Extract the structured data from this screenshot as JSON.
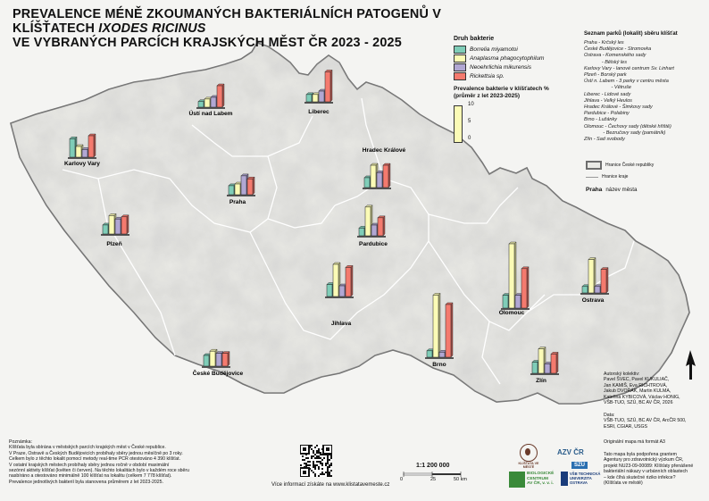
{
  "title": {
    "line1_prefix": "PREVALENCE MÉNĚ ZKOUMANÝCH BAKTERIÁLNÍCH PATOGENŮ V KLÍŠŤATECH ",
    "line1_species": "IXODES RICINUS",
    "line2": "VE VYBRANÝCH PARCÍCH KRAJSKÝCH MĚST ČR 2023 - 2025"
  },
  "colors": {
    "borrelia": "#7fcdb8",
    "anaplasma": "#fbfbb6",
    "neoehrlichia": "#b1a7d3",
    "rickettsia": "#f47a6e",
    "border": "#777777",
    "map_fill": "#eaeae6"
  },
  "legend": {
    "title": "Druh bakterie",
    "items": [
      {
        "key": "borrelia",
        "label": "Borrelia miyamotoi"
      },
      {
        "key": "anaplasma",
        "label": "Anaplasma phagocytophilum"
      },
      {
        "key": "neoehrlichia",
        "label": "Neoehrlichia mikurensis"
      },
      {
        "key": "rickettsia",
        "label": "Rickettsia sp."
      }
    ],
    "scale_title_line1": "Prevalence bakterie v klíšťatech %",
    "scale_title_line2": "(průměr z let 2023-2025)",
    "scale_ticks": [
      "10",
      "5",
      "0"
    ]
  },
  "parks": {
    "title": "Seznam parků (lokalit) sběru klíšťat",
    "items": [
      "Praha - Krčský les",
      "České Budějovice - Stromovka",
      "Ostrava - Komenského sady",
      "             - Bělský les",
      "Karlovy Vary - lanové centrum Sv. Linhart",
      "Plzeň - Borský park",
      "Ústí n. Labem - 3 parky v centru města",
      "                    - Větruše",
      "Liberec - Lidové sady",
      "Jihlava - Velký Heulos",
      "Hradec Králové - Šimkovy sady",
      "Pardubice - Polabiny",
      "Brno - Lužánky",
      "Olomouc - Čechovy sady (dětské hřiště)",
      "              - Bezručovy sady (památník)",
      "Zlín - Sad svobody"
    ]
  },
  "map_legend": {
    "border_label": "Hranice České republiky",
    "region_label": "Hranice kraje",
    "city_sample": "Praha",
    "city_label": "název města"
  },
  "chart_data": {
    "type": "bar",
    "title": "",
    "series_keys": [
      "borrelia",
      "anaplasma",
      "neoehrlichia",
      "rickettsia"
    ],
    "unit": "%",
    "ylim": [
      0,
      10
    ],
    "cities": [
      {
        "name": "Karlovy Vary",
        "values": [
          4.3,
          2.5,
          1.8,
          5.0
        ]
      },
      {
        "name": "Ústí nad Labem",
        "values": [
          1.3,
          1.9,
          2.3,
          5.0
        ]
      },
      {
        "name": "Liberec",
        "values": [
          1.7,
          1.7,
          2.5,
          7.0
        ]
      },
      {
        "name": "Hradec Králové",
        "values": [
          2.3,
          5.2,
          3.5,
          5.2
        ]
      },
      {
        "name": "Praha",
        "values": [
          2.1,
          2.5,
          4.4,
          3.7
        ]
      },
      {
        "name": "Plzeň",
        "values": [
          2.1,
          4.3,
          3.5,
          4.0
        ]
      },
      {
        "name": "Pardubice",
        "values": [
          1.8,
          6.7,
          2.5,
          4.2
        ]
      },
      {
        "name": "Olomouc",
        "values": [
          3.0,
          15.0,
          3.0,
          9.2
        ]
      },
      {
        "name": "Ostrava",
        "values": [
          1.5,
          7.8,
          1.5,
          5.5
        ]
      },
      {
        "name": "Jihlava",
        "values": [
          2.8,
          7.5,
          2.5,
          6.8
        ]
      },
      {
        "name": "Brno",
        "values": [
          1.5,
          14.5,
          1.2,
          12.3
        ]
      },
      {
        "name": "České Budějovice",
        "values": [
          2.5,
          3.5,
          3.0,
          3.0
        ]
      },
      {
        "name": "Zlín",
        "values": [
          2.6,
          5.7,
          2.2,
          4.5
        ]
      }
    ]
  },
  "note": {
    "title": "Poznámka:",
    "lines": [
      "Klíšťata byla sbírána v městských parcích krajských měst v České republice.",
      "V Praze, Ostravě a Českých Budějovicích probíhaly sběry jednou měsíčně po 3 roky.",
      "Celkem bylo z těchto lokalit pomocí metody real-time PCR otestováno 4 390 klíšťat.",
      "V ostatní krajských městech probíhaly sběry jednou ročně v období maximální",
      "sezónní aktivity klíšťat (květen či červen). Na těchto lokalitách bylo v každém roce sběru",
      "nasbíráno a otestováno minimálně 100 klíšťat na lokalitu (celkem 7 778 klíšťat).",
      "Prevalence jednotlivých bakterií byla stanovena průměrem z let 2023-2025."
    ]
  },
  "scale": {
    "ratio": "1:1 200 000",
    "ticks": [
      "0",
      "25",
      "50 km"
    ]
  },
  "more_info": "Více informací získáte na www.klistatavemeste.cz",
  "authors": {
    "lines": [
      "Autorský kolektiv:",
      "Pavel ŠVEC, Pavel KUKULIAČ,",
      "Jan KAMIŠ, Eva RICHTROVÁ,",
      "Jakub DVOŘÁK, Martin KULMA,",
      "Kateřina KYBICOVÁ, Václav HONIG,",
      "VŠB-TUO, SZÚ, BC AV ČR, 2026"
    ]
  },
  "data_source": {
    "lines": [
      "Data:",
      "VŠB-TUO, SZÚ, BC AV ČR, ArcČR 500,",
      "ESRI, CGIAR, USGS"
    ]
  },
  "original_format": "Originální mapa má formát A3",
  "funding": {
    "lines": [
      "Tato mapa byla podpořena grantem",
      "Agentury pro zdravotnický výzkum ČR,",
      "projekt NU23-09-00089: Klíšťaty přenášené",
      "bakteriální nákazy v urbánních oblastech",
      "– kde číhá skutečné riziko infekce?",
      "(Klíšťata ve městě)"
    ]
  },
  "logos": {
    "project": "KLÍŠŤATA VE MĚSTĚ",
    "azv": "AZV ČR",
    "szu": "SZÚ",
    "biology_line1": "BIOLOGICKÉ",
    "biology_line2": "CENTRUM",
    "biology_line3": "AV ČR, v. v. i.",
    "vsb_line1": "VŠB TECHNICKÁ",
    "vsb_line2": "UNIVERZITA",
    "vsb_line3": "OSTRAVA"
  }
}
